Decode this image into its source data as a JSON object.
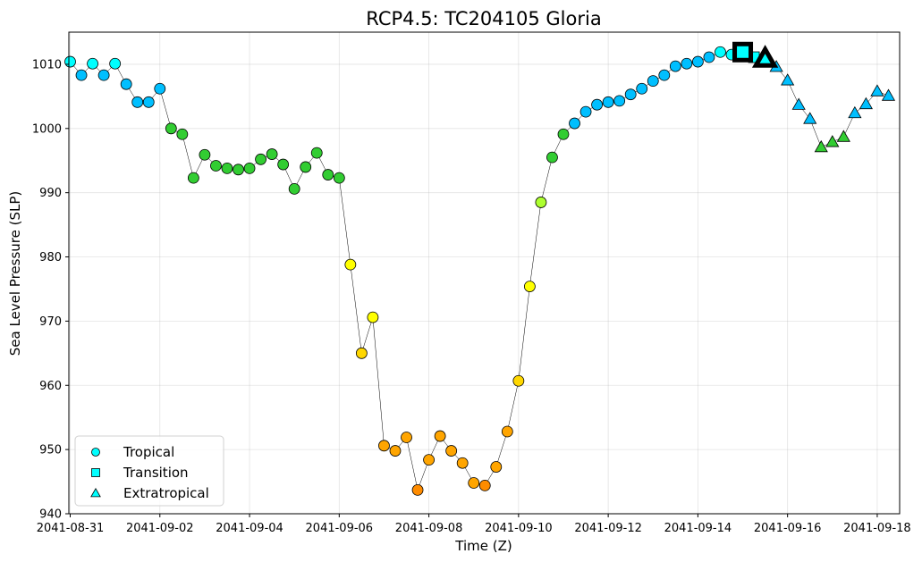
{
  "chart_data": {
    "type": "scatter",
    "title": "RCP4.5: TC204105 Gloria",
    "xlabel": "Time (Z)",
    "ylabel": "Sea Level Pressure (SLP)",
    "xlim": [
      "2041-08-31T00:00",
      "2041-09-18T12:00"
    ],
    "ylim": [
      940,
      1015
    ],
    "x_ticks": [
      "2041-08-31",
      "2041-09-02",
      "2041-09-04",
      "2041-09-06",
      "2041-09-08",
      "2041-09-10",
      "2041-09-12",
      "2041-09-14",
      "2041-09-16",
      "2041-09-18"
    ],
    "y_ticks": [
      940,
      950,
      960,
      970,
      980,
      990,
      1000,
      1010
    ],
    "grid": true,
    "legend": {
      "location": "lower-left",
      "entries": [
        {
          "label": "Tropical",
          "marker": "circle",
          "color": "#00ffff"
        },
        {
          "label": "Transition",
          "marker": "square",
          "color": "#00ffff"
        },
        {
          "label": "Extratropical",
          "marker": "triangle",
          "color": "#00ffff"
        }
      ]
    },
    "points": [
      {
        "t": "2041-08-31T00:00",
        "slp": 1010.4,
        "phase": "tropical",
        "color": "#00ffff"
      },
      {
        "t": "2041-08-31T06:00",
        "slp": 1008.3,
        "phase": "tropical",
        "color": "#00bfff"
      },
      {
        "t": "2041-08-31T12:00",
        "slp": 1010.1,
        "phase": "tropical",
        "color": "#00ffff"
      },
      {
        "t": "2041-08-31T18:00",
        "slp": 1008.3,
        "phase": "tropical",
        "color": "#00bfff"
      },
      {
        "t": "2041-09-01T00:00",
        "slp": 1010.1,
        "phase": "tropical",
        "color": "#00ffff"
      },
      {
        "t": "2041-09-01T06:00",
        "slp": 1006.9,
        "phase": "tropical",
        "color": "#00bfff"
      },
      {
        "t": "2041-09-01T12:00",
        "slp": 1004.1,
        "phase": "tropical",
        "color": "#00bfff"
      },
      {
        "t": "2041-09-01T18:00",
        "slp": 1004.1,
        "phase": "tropical",
        "color": "#00bfff"
      },
      {
        "t": "2041-09-02T00:00",
        "slp": 1006.2,
        "phase": "tropical",
        "color": "#00bfff"
      },
      {
        "t": "2041-09-02T06:00",
        "slp": 1000.0,
        "phase": "tropical",
        "color": "#32cd32"
      },
      {
        "t": "2041-09-02T12:00",
        "slp": 999.1,
        "phase": "tropical",
        "color": "#32cd32"
      },
      {
        "t": "2041-09-02T18:00",
        "slp": 992.3,
        "phase": "tropical",
        "color": "#32cd32"
      },
      {
        "t": "2041-09-03T00:00",
        "slp": 995.9,
        "phase": "tropical",
        "color": "#32cd32"
      },
      {
        "t": "2041-09-03T06:00",
        "slp": 994.2,
        "phase": "tropical",
        "color": "#32cd32"
      },
      {
        "t": "2041-09-03T12:00",
        "slp": 993.8,
        "phase": "tropical",
        "color": "#32cd32"
      },
      {
        "t": "2041-09-03T18:00",
        "slp": 993.6,
        "phase": "tropical",
        "color": "#32cd32"
      },
      {
        "t": "2041-09-04T00:00",
        "slp": 993.8,
        "phase": "tropical",
        "color": "#32cd32"
      },
      {
        "t": "2041-09-04T06:00",
        "slp": 995.2,
        "phase": "tropical",
        "color": "#32cd32"
      },
      {
        "t": "2041-09-04T12:00",
        "slp": 996.0,
        "phase": "tropical",
        "color": "#32cd32"
      },
      {
        "t": "2041-09-04T18:00",
        "slp": 994.4,
        "phase": "tropical",
        "color": "#32cd32"
      },
      {
        "t": "2041-09-05T00:00",
        "slp": 990.6,
        "phase": "tropical",
        "color": "#32cd32"
      },
      {
        "t": "2041-09-05T06:00",
        "slp": 994.0,
        "phase": "tropical",
        "color": "#32cd32"
      },
      {
        "t": "2041-09-05T12:00",
        "slp": 996.2,
        "phase": "tropical",
        "color": "#32cd32"
      },
      {
        "t": "2041-09-05T18:00",
        "slp": 992.8,
        "phase": "tropical",
        "color": "#32cd32"
      },
      {
        "t": "2041-09-06T00:00",
        "slp": 992.3,
        "phase": "tropical",
        "color": "#32cd32"
      },
      {
        "t": "2041-09-06T06:00",
        "slp": 978.8,
        "phase": "tropical",
        "color": "#ffff00"
      },
      {
        "t": "2041-09-06T12:00",
        "slp": 965.0,
        "phase": "tropical",
        "color": "#ffd700"
      },
      {
        "t": "2041-09-06T18:00",
        "slp": 970.6,
        "phase": "tropical",
        "color": "#ffff00"
      },
      {
        "t": "2041-09-07T00:00",
        "slp": 950.6,
        "phase": "tropical",
        "color": "#ffa500"
      },
      {
        "t": "2041-09-07T06:00",
        "slp": 949.8,
        "phase": "tropical",
        "color": "#ffa500"
      },
      {
        "t": "2041-09-07T12:00",
        "slp": 951.9,
        "phase": "tropical",
        "color": "#ffa500"
      },
      {
        "t": "2041-09-07T18:00",
        "slp": 943.7,
        "phase": "tropical",
        "color": "#ff8c00"
      },
      {
        "t": "2041-09-08T00:00",
        "slp": 948.4,
        "phase": "tropical",
        "color": "#ffa500"
      },
      {
        "t": "2041-09-08T06:00",
        "slp": 952.1,
        "phase": "tropical",
        "color": "#ffa500"
      },
      {
        "t": "2041-09-08T12:00",
        "slp": 949.8,
        "phase": "tropical",
        "color": "#ffa500"
      },
      {
        "t": "2041-09-08T18:00",
        "slp": 947.9,
        "phase": "tropical",
        "color": "#ffa500"
      },
      {
        "t": "2041-09-09T00:00",
        "slp": 944.8,
        "phase": "tropical",
        "color": "#ffa500"
      },
      {
        "t": "2041-09-09T06:00",
        "slp": 944.4,
        "phase": "tropical",
        "color": "#ff8c00"
      },
      {
        "t": "2041-09-09T12:00",
        "slp": 947.3,
        "phase": "tropical",
        "color": "#ffa500"
      },
      {
        "t": "2041-09-09T18:00",
        "slp": 952.8,
        "phase": "tropical",
        "color": "#ffa500"
      },
      {
        "t": "2041-09-10T00:00",
        "slp": 960.7,
        "phase": "tropical",
        "color": "#ffd700"
      },
      {
        "t": "2041-09-10T06:00",
        "slp": 975.4,
        "phase": "tropical",
        "color": "#ffff00"
      },
      {
        "t": "2041-09-10T12:00",
        "slp": 988.5,
        "phase": "tropical",
        "color": "#adff2f"
      },
      {
        "t": "2041-09-10T18:00",
        "slp": 995.5,
        "phase": "tropical",
        "color": "#32cd32"
      },
      {
        "t": "2041-09-11T00:00",
        "slp": 999.1,
        "phase": "tropical",
        "color": "#32cd32"
      },
      {
        "t": "2041-09-11T06:00",
        "slp": 1000.8,
        "phase": "tropical",
        "color": "#00bfff"
      },
      {
        "t": "2041-09-11T12:00",
        "slp": 1002.6,
        "phase": "tropical",
        "color": "#00bfff"
      },
      {
        "t": "2041-09-11T18:00",
        "slp": 1003.7,
        "phase": "tropical",
        "color": "#00bfff"
      },
      {
        "t": "2041-09-12T00:00",
        "slp": 1004.1,
        "phase": "tropical",
        "color": "#00bfff"
      },
      {
        "t": "2041-09-12T06:00",
        "slp": 1004.3,
        "phase": "tropical",
        "color": "#00bfff"
      },
      {
        "t": "2041-09-12T12:00",
        "slp": 1005.3,
        "phase": "tropical",
        "color": "#00bfff"
      },
      {
        "t": "2041-09-12T18:00",
        "slp": 1006.2,
        "phase": "tropical",
        "color": "#00bfff"
      },
      {
        "t": "2041-09-13T00:00",
        "slp": 1007.4,
        "phase": "tropical",
        "color": "#00bfff"
      },
      {
        "t": "2041-09-13T06:00",
        "slp": 1008.3,
        "phase": "tropical",
        "color": "#00bfff"
      },
      {
        "t": "2041-09-13T12:00",
        "slp": 1009.7,
        "phase": "tropical",
        "color": "#00bfff"
      },
      {
        "t": "2041-09-13T18:00",
        "slp": 1010.1,
        "phase": "tropical",
        "color": "#00bfff"
      },
      {
        "t": "2041-09-14T00:00",
        "slp": 1010.4,
        "phase": "tropical",
        "color": "#00bfff"
      },
      {
        "t": "2041-09-14T06:00",
        "slp": 1011.1,
        "phase": "tropical",
        "color": "#00bfff"
      },
      {
        "t": "2041-09-14T12:00",
        "slp": 1011.9,
        "phase": "tropical",
        "color": "#00ffff"
      },
      {
        "t": "2041-09-14T18:00",
        "slp": 1011.5,
        "phase": "tropical",
        "color": "#00ffff"
      },
      {
        "t": "2041-09-15T00:00",
        "slp": 1011.9,
        "phase": "transition",
        "color": "#00ffff",
        "highlight": true
      },
      {
        "t": "2041-09-15T06:00",
        "slp": 1011.1,
        "phase": "transition",
        "color": "#00ffff"
      },
      {
        "t": "2041-09-15T12:00",
        "slp": 1010.9,
        "phase": "extratropical",
        "color": "#00ffff",
        "highlight": true
      },
      {
        "t": "2041-09-15T18:00",
        "slp": 1009.6,
        "phase": "extratropical",
        "color": "#00bfff"
      },
      {
        "t": "2041-09-16T00:00",
        "slp": 1007.5,
        "phase": "extratropical",
        "color": "#00bfff"
      },
      {
        "t": "2041-09-16T06:00",
        "slp": 1003.7,
        "phase": "extratropical",
        "color": "#00bfff"
      },
      {
        "t": "2041-09-16T12:00",
        "slp": 1001.5,
        "phase": "extratropical",
        "color": "#00bfff"
      },
      {
        "t": "2041-09-16T18:00",
        "slp": 997.1,
        "phase": "extratropical",
        "color": "#32cd32"
      },
      {
        "t": "2041-09-17T00:00",
        "slp": 997.9,
        "phase": "extratropical",
        "color": "#32cd32"
      },
      {
        "t": "2041-09-17T06:00",
        "slp": 998.7,
        "phase": "extratropical",
        "color": "#32cd32"
      },
      {
        "t": "2041-09-17T12:00",
        "slp": 1002.4,
        "phase": "extratropical",
        "color": "#00bfff"
      },
      {
        "t": "2041-09-17T18:00",
        "slp": 1003.8,
        "phase": "extratropical",
        "color": "#00bfff"
      },
      {
        "t": "2041-09-18T00:00",
        "slp": 1005.8,
        "phase": "extratropical",
        "color": "#00bfff"
      },
      {
        "t": "2041-09-18T06:00",
        "slp": 1005.1,
        "phase": "extratropical",
        "color": "#00bfff"
      }
    ]
  }
}
